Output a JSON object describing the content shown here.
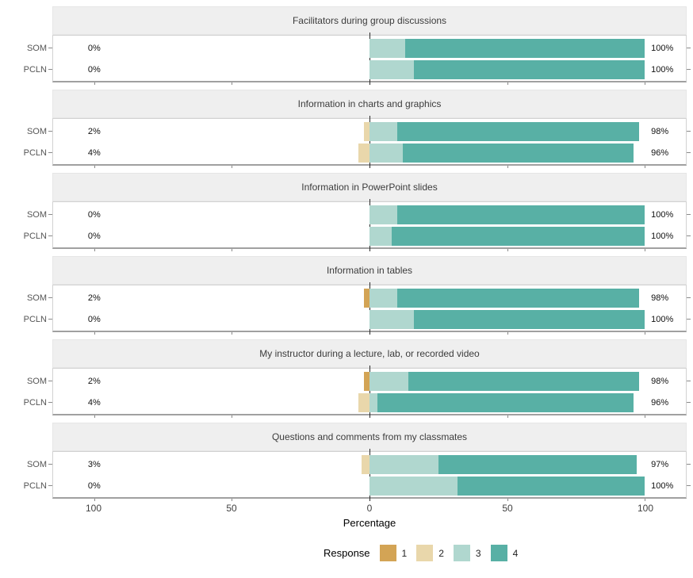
{
  "figure": {
    "background": "#ffffff",
    "strip_background": "#efefef",
    "panel_border": "#d2d2d2",
    "panel_bottom_border": "#a0a0a0",
    "zero_line_color": "#2b2b2b"
  },
  "chart_data": {
    "type": "bar",
    "variant": "diverging_stacked_likert",
    "xlabel": "Percentage",
    "xlim": [
      -115,
      115
    ],
    "x_ticks": [
      -100,
      -50,
      0,
      50,
      100
    ],
    "x_tick_labels": [
      "100",
      "50",
      "0",
      "50",
      "100"
    ],
    "grid": false,
    "groups": [
      "SOM",
      "PCLN"
    ],
    "legend": {
      "title": "Response",
      "position": "bottom",
      "items": [
        {
          "label": "1",
          "color": "#d3a455"
        },
        {
          "label": "2",
          "color": "#e9d7ab"
        },
        {
          "label": "3",
          "color": "#b0d7cf"
        },
        {
          "label": "4",
          "color": "#58b0a5"
        }
      ]
    },
    "panels": [
      {
        "title": "Facilitators during group discussions",
        "rows": [
          {
            "group": "SOM",
            "neg_label": "0%",
            "pos_label": "100%",
            "values": {
              "1": 0,
              "2": 0,
              "3": 13,
              "4": 87
            }
          },
          {
            "group": "PCLN",
            "neg_label": "0%",
            "pos_label": "100%",
            "values": {
              "1": 0,
              "2": 0,
              "3": 16,
              "4": 84
            }
          }
        ]
      },
      {
        "title": "Information in charts and graphics",
        "rows": [
          {
            "group": "SOM",
            "neg_label": "2%",
            "pos_label": "98%",
            "values": {
              "1": 0,
              "2": 2,
              "3": 10,
              "4": 88
            }
          },
          {
            "group": "PCLN",
            "neg_label": "4%",
            "pos_label": "96%",
            "values": {
              "1": 0,
              "2": 4,
              "3": 12,
              "4": 84
            }
          }
        ]
      },
      {
        "title": "Information in PowerPoint slides",
        "rows": [
          {
            "group": "SOM",
            "neg_label": "0%",
            "pos_label": "100%",
            "values": {
              "1": 0,
              "2": 0,
              "3": 10,
              "4": 90
            }
          },
          {
            "group": "PCLN",
            "neg_label": "0%",
            "pos_label": "100%",
            "values": {
              "1": 0,
              "2": 0,
              "3": 8,
              "4": 92
            }
          }
        ]
      },
      {
        "title": "Information in tables",
        "rows": [
          {
            "group": "SOM",
            "neg_label": "2%",
            "pos_label": "98%",
            "values": {
              "1": 2,
              "2": 0,
              "3": 10,
              "4": 88
            }
          },
          {
            "group": "PCLN",
            "neg_label": "0%",
            "pos_label": "100%",
            "values": {
              "1": 0,
              "2": 0,
              "3": 16,
              "4": 84
            }
          }
        ]
      },
      {
        "title": "My instructor during a lecture, lab, or recorded video",
        "rows": [
          {
            "group": "SOM",
            "neg_label": "2%",
            "pos_label": "98%",
            "values": {
              "1": 2,
              "2": 0,
              "3": 14,
              "4": 84
            }
          },
          {
            "group": "PCLN",
            "neg_label": "4%",
            "pos_label": "96%",
            "values": {
              "1": 0,
              "2": 4,
              "3": 3,
              "4": 93
            }
          }
        ]
      },
      {
        "title": "Questions and comments from my classmates",
        "rows": [
          {
            "group": "SOM",
            "neg_label": "3%",
            "pos_label": "97%",
            "values": {
              "1": 0,
              "2": 3,
              "3": 25,
              "4": 72
            }
          },
          {
            "group": "PCLN",
            "neg_label": "0%",
            "pos_label": "100%",
            "values": {
              "1": 0,
              "2": 0,
              "3": 32,
              "4": 68
            }
          }
        ]
      }
    ]
  }
}
